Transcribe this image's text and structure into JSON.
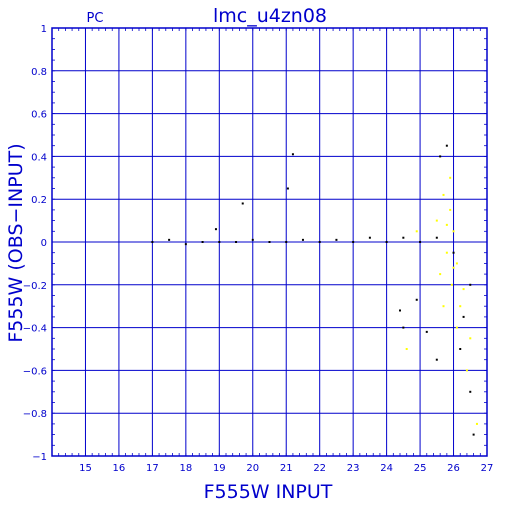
{
  "chart_data": {
    "type": "scatter",
    "title": "lmc_u4zn08",
    "corner_label": "PC",
    "xlabel": "F555W INPUT",
    "ylabel": "F555W (OBS−INPUT)",
    "xlim": [
      14,
      27
    ],
    "ylim": [
      -1,
      1
    ],
    "x_ticks": [
      15,
      16,
      17,
      18,
      19,
      20,
      21,
      22,
      23,
      24,
      25,
      26,
      27
    ],
    "y_ticks": [
      -1,
      -0.8,
      -0.6,
      -0.4,
      -0.2,
      0,
      0.2,
      0.4,
      0.6,
      0.8,
      1
    ],
    "y_tick_labels": [
      "−1",
      "−0.8",
      "−0.6",
      "−0.4",
      "−0.2",
      "0",
      "0.2",
      "0.4",
      "0.6",
      "0.8",
      "1"
    ],
    "grid": true,
    "colors": {
      "frame": "#0000cc",
      "main_points": "#000000",
      "highlight_points": "#ffff00"
    },
    "series": [
      {
        "color": "#000000",
        "points": [
          [
            17.0,
            0.0
          ],
          [
            17.5,
            0.01
          ],
          [
            18.0,
            -0.01
          ],
          [
            18.5,
            0.0
          ],
          [
            19.0,
            0.0
          ],
          [
            19.5,
            0.0
          ],
          [
            20.0,
            0.01
          ],
          [
            20.5,
            0.0
          ],
          [
            21.0,
            0.0
          ],
          [
            21.5,
            0.01
          ],
          [
            22.0,
            0.0
          ],
          [
            22.5,
            0.01
          ],
          [
            23.0,
            0.0
          ],
          [
            23.5,
            0.02
          ],
          [
            24.0,
            0.0
          ],
          [
            24.5,
            0.02
          ],
          [
            25.0,
            0.0
          ],
          [
            25.5,
            0.02
          ],
          [
            26.0,
            -0.05
          ],
          [
            26.5,
            -0.2
          ],
          [
            21.2,
            0.41
          ],
          [
            21.05,
            0.25
          ],
          [
            19.7,
            0.18
          ],
          [
            18.9,
            0.06
          ],
          [
            24.5,
            -0.4
          ],
          [
            25.5,
            -0.55
          ],
          [
            26.2,
            -0.5
          ],
          [
            26.5,
            -0.7
          ],
          [
            26.6,
            -0.9
          ],
          [
            24.4,
            -0.32
          ],
          [
            25.8,
            0.45
          ],
          [
            25.6,
            0.4
          ],
          [
            26.3,
            -0.35
          ],
          [
            24.9,
            -0.27
          ],
          [
            25.2,
            -0.42
          ]
        ]
      },
      {
        "color": "#ffff00",
        "points": [
          [
            25.7,
            0.22
          ],
          [
            25.9,
            0.15
          ],
          [
            26.0,
            0.05
          ],
          [
            26.1,
            -0.1
          ],
          [
            25.95,
            -0.2
          ],
          [
            26.2,
            -0.3
          ],
          [
            25.8,
            -0.05
          ],
          [
            25.5,
            0.1
          ],
          [
            25.9,
            0.3
          ],
          [
            24.9,
            0.05
          ],
          [
            26.1,
            -0.4
          ],
          [
            26.4,
            -0.6
          ],
          [
            26.7,
            -0.85
          ],
          [
            26.0,
            -0.12
          ],
          [
            25.6,
            -0.15
          ],
          [
            25.8,
            0.08
          ],
          [
            26.3,
            -0.22
          ],
          [
            25.7,
            -0.3
          ],
          [
            24.6,
            -0.5
          ],
          [
            26.5,
            -0.45
          ]
        ]
      }
    ]
  }
}
